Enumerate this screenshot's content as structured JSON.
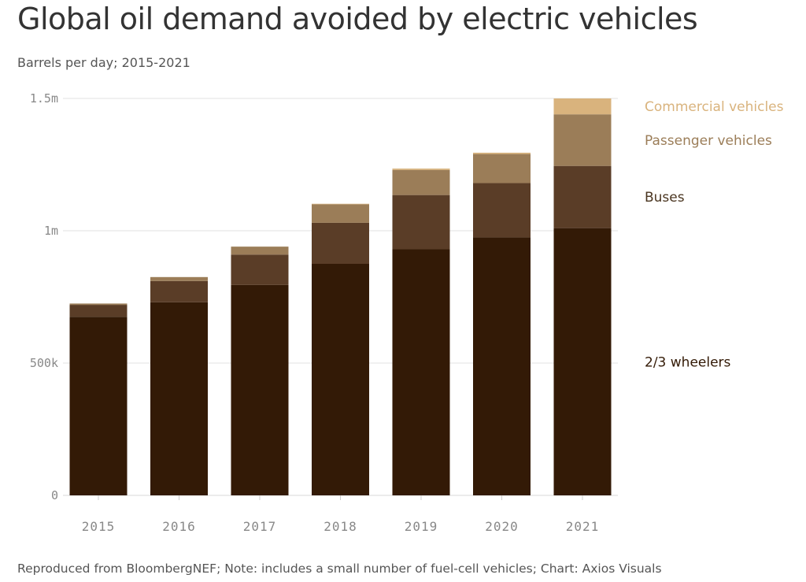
{
  "title": "Global oil demand avoided by electric vehicles",
  "subtitle": "Barrels per day; 2015-2021",
  "footer": "Reproduced from BloombergNEF; Note: includes a small number of fuel-cell vehicles; Chart: Axios Visuals",
  "chart_data": {
    "type": "bar",
    "stacked": true,
    "categories": [
      "2015",
      "2016",
      "2017",
      "2018",
      "2019",
      "2020",
      "2021"
    ],
    "series": [
      {
        "name": "2/3 wheelers",
        "color": "#331a06",
        "label_color": "#331a06",
        "values": [
          675000,
          730000,
          795000,
          875000,
          930000,
          975000,
          1010000
        ]
      },
      {
        "name": "Buses",
        "color": "#5a3d27",
        "label_color": "#4a3520",
        "values": [
          45000,
          80000,
          115000,
          155000,
          205000,
          205000,
          235000
        ]
      },
      {
        "name": "Passenger vehicles",
        "color": "#9b7d58",
        "label_color": "#9b7d58",
        "values": [
          5000,
          15000,
          30000,
          70000,
          95000,
          110000,
          195000
        ]
      },
      {
        "name": "Commercial vehicles",
        "color": "#d9b37d",
        "label_color": "#d9b37d",
        "values": [
          0,
          0,
          0,
          2000,
          5000,
          5000,
          60000
        ]
      }
    ],
    "yticks": [
      {
        "value": 0,
        "label": "0"
      },
      {
        "value": 500000,
        "label": "500k"
      },
      {
        "value": 1000000,
        "label": "1m"
      },
      {
        "value": 1500000,
        "label": "1.5m"
      }
    ],
    "ylim": [
      0,
      1500000
    ],
    "grid": true,
    "legend": "right, inline labels"
  }
}
